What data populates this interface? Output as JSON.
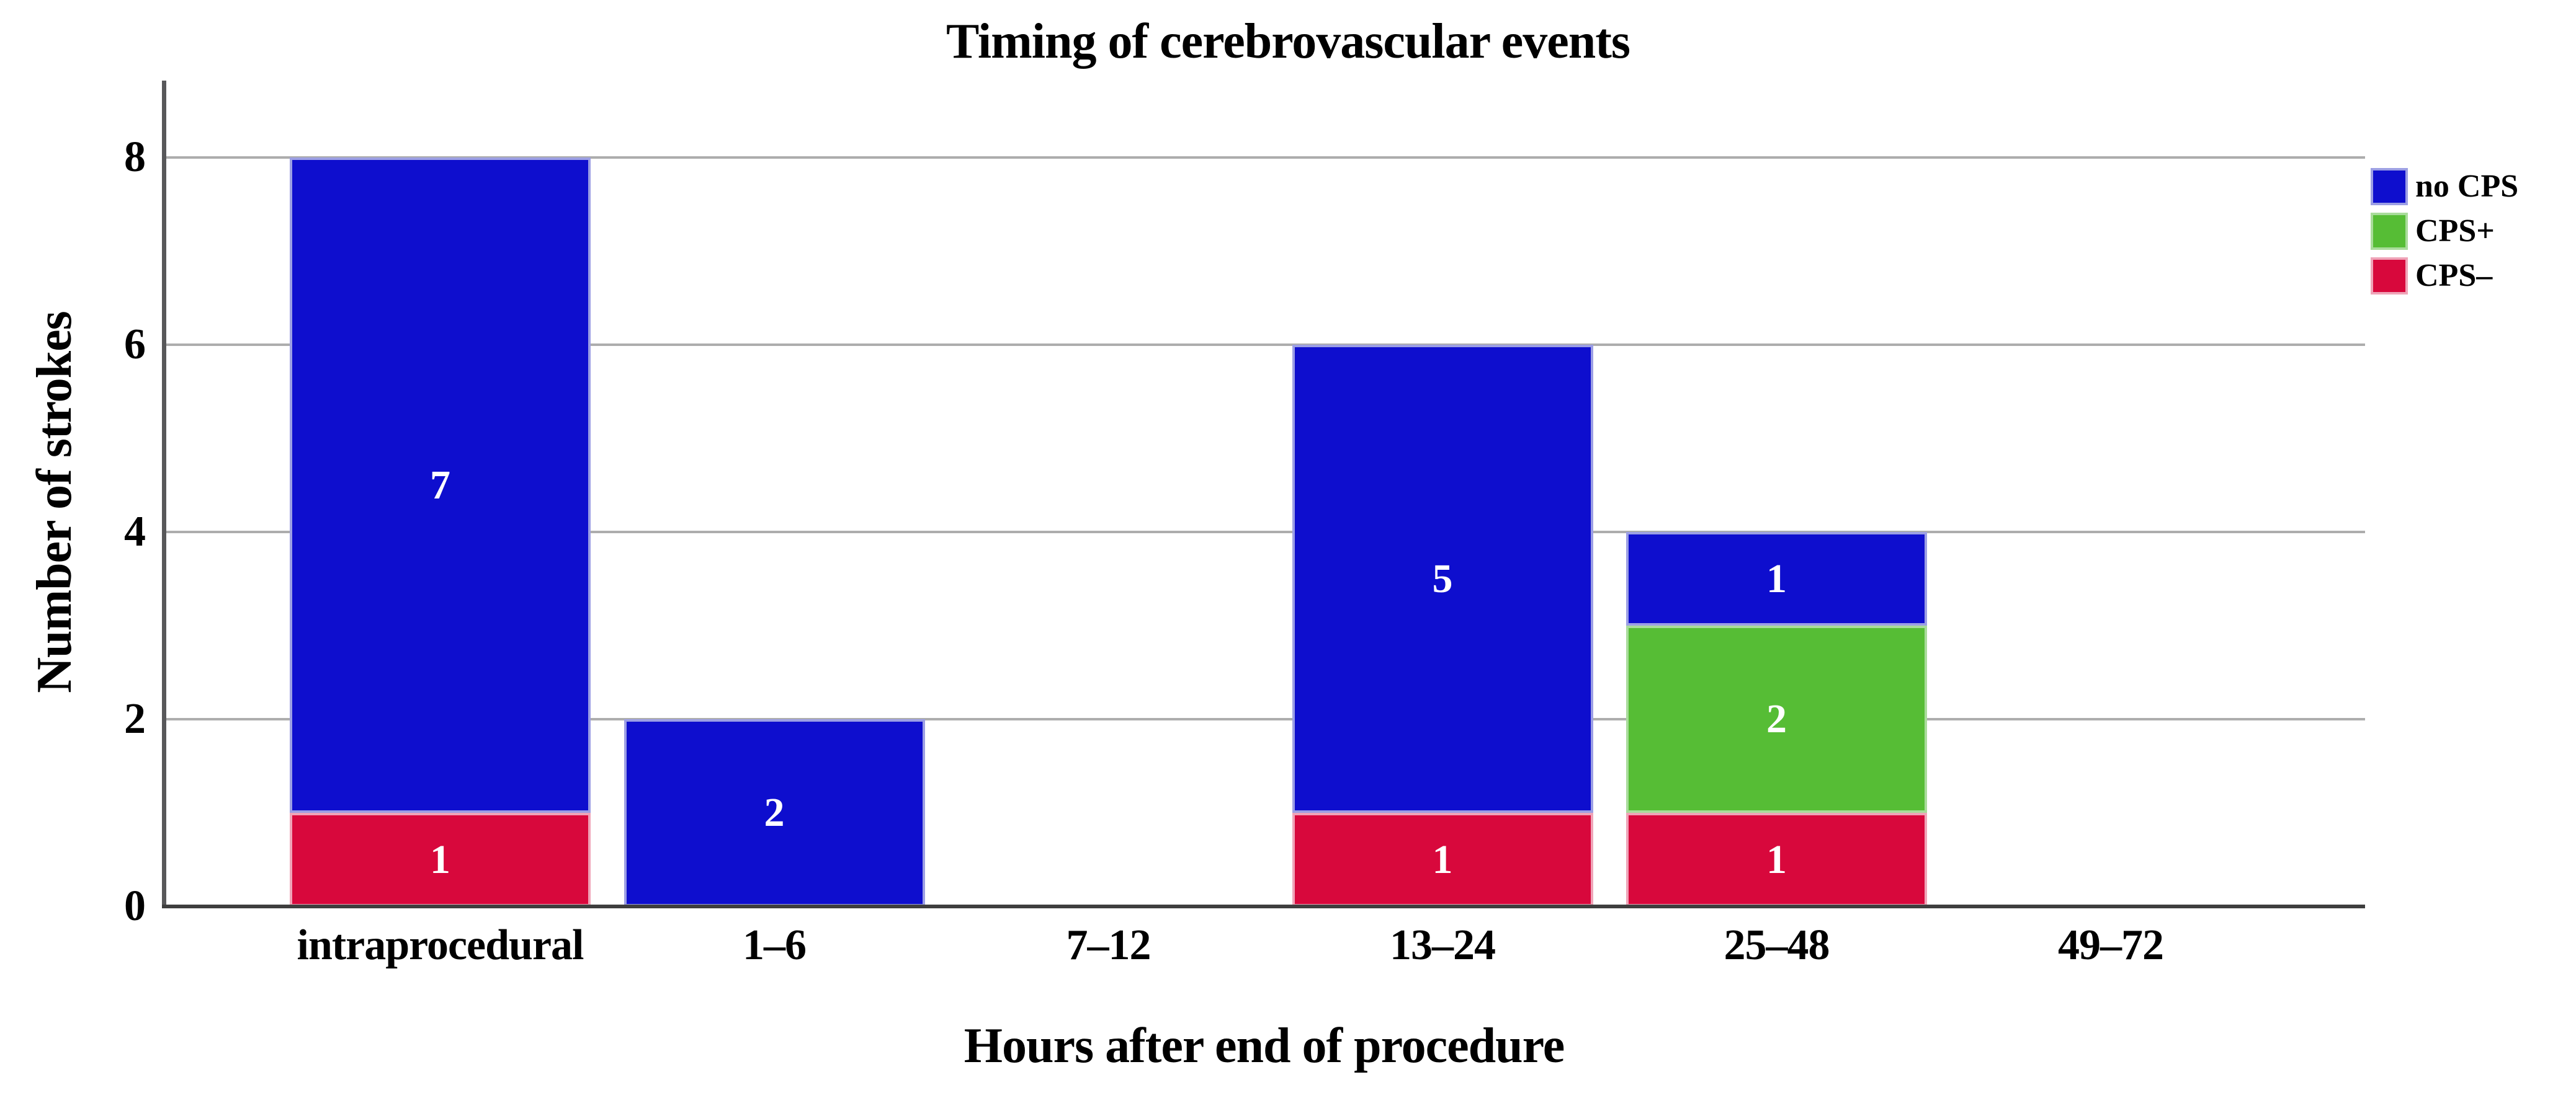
{
  "chart_data": {
    "type": "bar",
    "stacked": true,
    "title": "Timing of cerebrovascular events",
    "xlabel": "Hours after end of procedure",
    "ylabel": "Number of strokes",
    "categories": [
      "intraprocedural",
      "1–6",
      "7–12",
      "13–24",
      "25–48",
      "49–72"
    ],
    "series": [
      {
        "name": "CPS–",
        "color": "#D8083C",
        "border_tint": "#EFA4B8",
        "values": [
          1,
          0,
          0,
          1,
          1,
          0
        ]
      },
      {
        "name": "CPS+",
        "color": "#56BD35",
        "border_tint": "#A9DC9B",
        "values": [
          0,
          0,
          0,
          0,
          2,
          0
        ]
      },
      {
        "name": "no CPS",
        "color": "#0E0ECE",
        "border_tint": "#9C9FE4",
        "values": [
          7,
          2,
          0,
          5,
          1,
          0
        ]
      }
    ],
    "stack_totals": [
      8,
      2,
      0,
      6,
      4,
      0
    ],
    "y_ticks": [
      0,
      2,
      4,
      6,
      8
    ],
    "ylim": [
      0,
      8.8
    ],
    "grid": "horizontal",
    "legend_position": "right",
    "legend_order": [
      "no CPS",
      "CPS+",
      "CPS–"
    ],
    "bar_label_color": "#FFFFFF",
    "gridline_color": "#ADADAD",
    "y_axis_color": "#58585A",
    "x_axis_color": "#3E3E3E",
    "text_color": "#000000",
    "background_color": "#FFFFFF"
  }
}
